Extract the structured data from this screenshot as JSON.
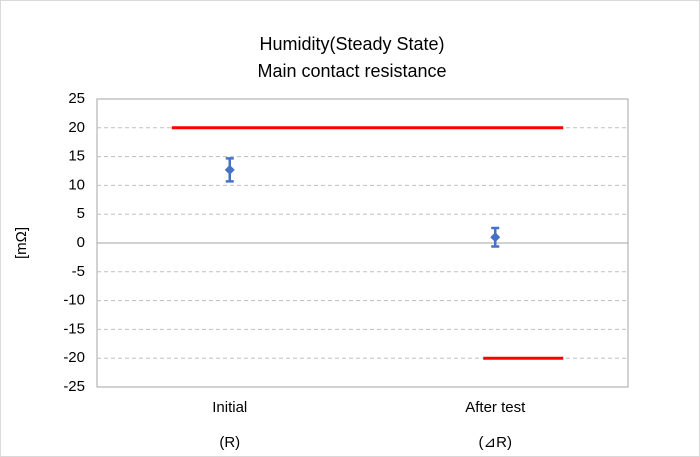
{
  "chart_data": {
    "type": "errorbar",
    "title": [
      "Humidity(Steady State)",
      "Main contact resistance"
    ],
    "ylabel": "[mΩ]",
    "categories": [
      [
        "Initial",
        "(R)"
      ],
      [
        "After test",
        "(⊿R)"
      ]
    ],
    "values": [
      12.7,
      1.0
    ],
    "errors": [
      2.0,
      1.6
    ],
    "color": "#4472c4",
    "upper_limit": [
      20,
      20
    ],
    "lower_limit": [
      null,
      -20
    ],
    "limit_color": "#ff0000",
    "ylim": [
      -25,
      25
    ],
    "yticks": [
      -25,
      -20,
      -15,
      -10,
      -5,
      0,
      5,
      10,
      15,
      20,
      25
    ],
    "grid": true
  }
}
